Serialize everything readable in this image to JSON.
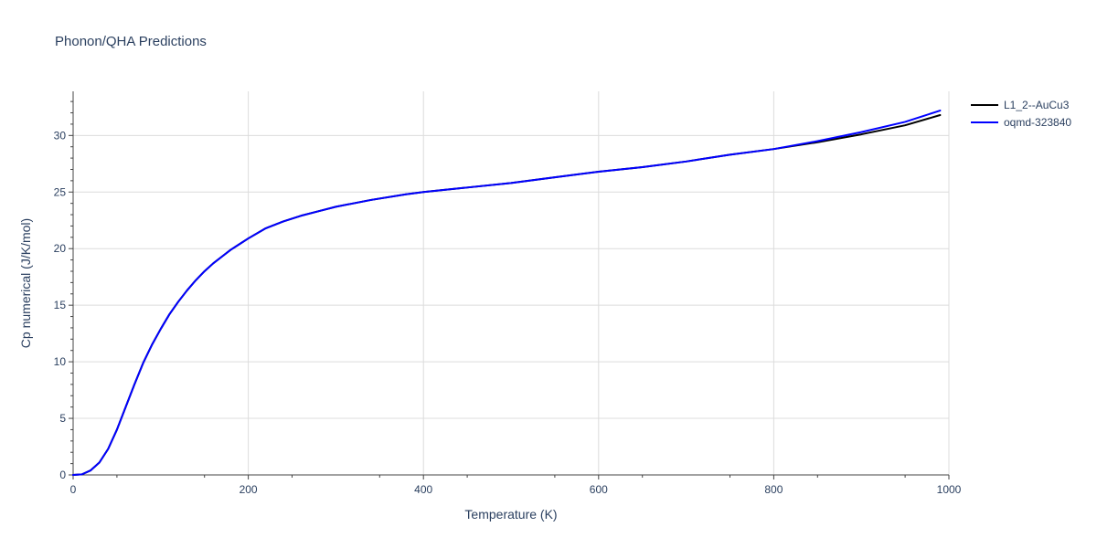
{
  "chart_data": {
    "type": "line",
    "title": "Phonon/QHA Predictions",
    "xlabel": "Temperature (K)",
    "ylabel": "Cp numerical (J/K/mol)",
    "xlim": [
      0,
      1000
    ],
    "ylim": [
      0,
      33.9
    ],
    "xticks": [
      0,
      200,
      400,
      600,
      800,
      1000
    ],
    "yticks": [
      0,
      5,
      10,
      15,
      20,
      25,
      30
    ],
    "grid": true,
    "legend_position": "top-right",
    "series": [
      {
        "name": "L1_2--AuCu3",
        "color": "#000000",
        "x": [
          0,
          10,
          20,
          30,
          40,
          50,
          60,
          70,
          80,
          90,
          100,
          110,
          120,
          130,
          140,
          150,
          160,
          170,
          180,
          190,
          200,
          220,
          240,
          260,
          280,
          300,
          340,
          380,
          400,
          450,
          500,
          550,
          600,
          650,
          700,
          750,
          800,
          850,
          900,
          950,
          990
        ],
        "y": [
          0,
          0.05,
          0.4,
          1.1,
          2.3,
          4.0,
          6.0,
          8.0,
          9.9,
          11.5,
          12.9,
          14.2,
          15.3,
          16.3,
          17.2,
          18.0,
          18.7,
          19.3,
          19.9,
          20.4,
          20.9,
          21.8,
          22.4,
          22.9,
          23.3,
          23.7,
          24.3,
          24.8,
          25.0,
          25.4,
          25.8,
          26.3,
          26.8,
          27.2,
          27.7,
          28.3,
          28.8,
          29.4,
          30.1,
          30.9,
          31.8
        ]
      },
      {
        "name": "oqmd-323840",
        "color": "#0000ff",
        "x": [
          0,
          10,
          20,
          30,
          40,
          50,
          60,
          70,
          80,
          90,
          100,
          110,
          120,
          130,
          140,
          150,
          160,
          170,
          180,
          190,
          200,
          220,
          240,
          260,
          280,
          300,
          340,
          380,
          400,
          450,
          500,
          550,
          600,
          650,
          700,
          750,
          800,
          850,
          900,
          950,
          990
        ],
        "y": [
          0,
          0.05,
          0.4,
          1.1,
          2.3,
          4.0,
          6.0,
          8.0,
          9.9,
          11.5,
          12.9,
          14.2,
          15.3,
          16.3,
          17.2,
          18.0,
          18.7,
          19.3,
          19.9,
          20.4,
          20.9,
          21.8,
          22.4,
          22.9,
          23.3,
          23.7,
          24.3,
          24.8,
          25.0,
          25.4,
          25.8,
          26.3,
          26.8,
          27.2,
          27.7,
          28.3,
          28.8,
          29.5,
          30.3,
          31.2,
          32.2
        ]
      }
    ]
  }
}
